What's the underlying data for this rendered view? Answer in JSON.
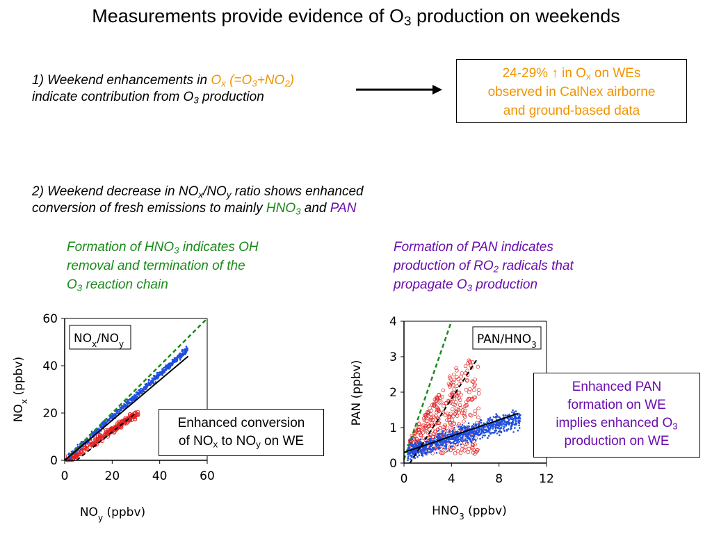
{
  "title": {
    "pre": "Measurements provide evidence of O",
    "sub": "3",
    "post": " production on weekends"
  },
  "point1": {
    "line1_pre": "1) Weekend enhancements in ",
    "ox": "O",
    "ox_sub": "x",
    "ox_rest": " (=O",
    "ox_sub2": "3",
    "ox_plus": "+NO",
    "ox_sub3": "2",
    "ox_close": ")",
    "line2_pre": "indicate contribution from O",
    "line2_sub": "3",
    "line2_post": " production"
  },
  "result_box": {
    "line1_pre": "24-29% ↑ in O",
    "line1_sub": "x",
    "line1_post": " on WEs",
    "line2": "observed in CalNex airborne",
    "line3": "and ground-based data"
  },
  "point2": {
    "line1_pre": "2) Weekend decrease in NO",
    "s1": "x",
    "slash": "/NO",
    "s2": "y",
    "line1_post": " ratio shows enhanced",
    "line2_pre": "conversion of fresh emissions to mainly ",
    "hno3": "HNO",
    "hno3_sub": "3",
    "and": " and ",
    "pan": "PAN"
  },
  "hno3_note": {
    "l1_pre": "Formation of HNO",
    "l1_sub": "3",
    "l1_post": " indicates OH",
    "l2": "removal and termination of the",
    "l3_pre": "O",
    "l3_sub": "3",
    "l3_post": " reaction chain"
  },
  "pan_note": {
    "l1": "Formation of PAN indicates",
    "l2_pre": "production of RO",
    "l2_sub": "2",
    "l2_post": " radicals that",
    "l3_pre": "propagate O",
    "l3_sub": "3",
    "l3_post": " production"
  },
  "left_box": {
    "l1": "Enhanced conversion",
    "l2_pre": "of NO",
    "l2_s1": "x",
    "l2_mid": " to NO",
    "l2_s2": "y",
    "l2_post": " on WE"
  },
  "right_box": {
    "l1": "Enhanced PAN",
    "l2": "formation on WE",
    "l3_pre": "implies enhanced O",
    "l3_sub": "3",
    "l4": "production on WE"
  },
  "colors": {
    "weekday": "#e02020",
    "weekend": "#1f4fe0",
    "fit": "#000000",
    "one_to_one": "#1a8a1a",
    "orange": "#f29400",
    "purple": "#6a0dad",
    "green": "#1a8a1a"
  },
  "chart_data": [
    {
      "type": "scatter",
      "label": {
        "main": "NO",
        "s1": "x",
        "mid": "/NO",
        "s2": "y"
      },
      "xlabel": {
        "main": "NO",
        "sub": "y",
        "post": " (ppbv)"
      },
      "ylabel": {
        "main": "NO",
        "sub": "x",
        "post": " (ppbv)"
      },
      "xlim": [
        0,
        60
      ],
      "ylim": [
        0,
        60
      ],
      "xticks": [
        "0",
        "20",
        "40",
        "60"
      ],
      "yticks": [
        "0",
        "20",
        "40",
        "60"
      ],
      "one_to_one": [
        [
          0,
          0
        ],
        [
          60,
          60
        ]
      ],
      "fit_weekend": [
        [
          0,
          0
        ],
        [
          52,
          44
        ]
      ],
      "fit_weekday": [
        [
          5,
          0
        ],
        [
          30,
          20
        ]
      ],
      "weekend_points_trend": [
        [
          2,
          1.8
        ],
        [
          10,
          9.2
        ],
        [
          20,
          18.5
        ],
        [
          30,
          27.5
        ],
        [
          40,
          36
        ],
        [
          52,
          48
        ]
      ],
      "weekday_points_trend": [
        [
          2,
          1
        ],
        [
          10,
          6
        ],
        [
          20,
          13
        ],
        [
          28,
          18
        ],
        [
          31,
          21
        ]
      ]
    },
    {
      "type": "scatter",
      "label": {
        "main": "PAN/HNO",
        "sub": "3"
      },
      "xlabel": {
        "main": "HNO",
        "sub": "3",
        "post": " (ppbv)"
      },
      "ylabel": {
        "main": "PAN (ppbv)"
      },
      "xlim": [
        0,
        12
      ],
      "ylim": [
        0,
        4
      ],
      "xticks": [
        "0",
        "4",
        "8",
        "12"
      ],
      "yticks": [
        "0",
        "1",
        "2",
        "3",
        "4"
      ],
      "fit_weekend": [
        [
          0,
          0.3
        ],
        [
          9.6,
          1.4
        ]
      ],
      "fit_weekday": [
        [
          0.5,
          0
        ],
        [
          6.1,
          2.9
        ]
      ],
      "steep_green": [
        [
          0,
          0.1
        ],
        [
          4,
          4
        ]
      ],
      "weekend_points_extent": {
        "x": [
          0.3,
          9.8
        ],
        "y": [
          0.1,
          1.6
        ]
      },
      "weekday_points_extent": {
        "x": [
          0.5,
          6.5
        ],
        "y": [
          0.2,
          2.9
        ]
      }
    }
  ]
}
